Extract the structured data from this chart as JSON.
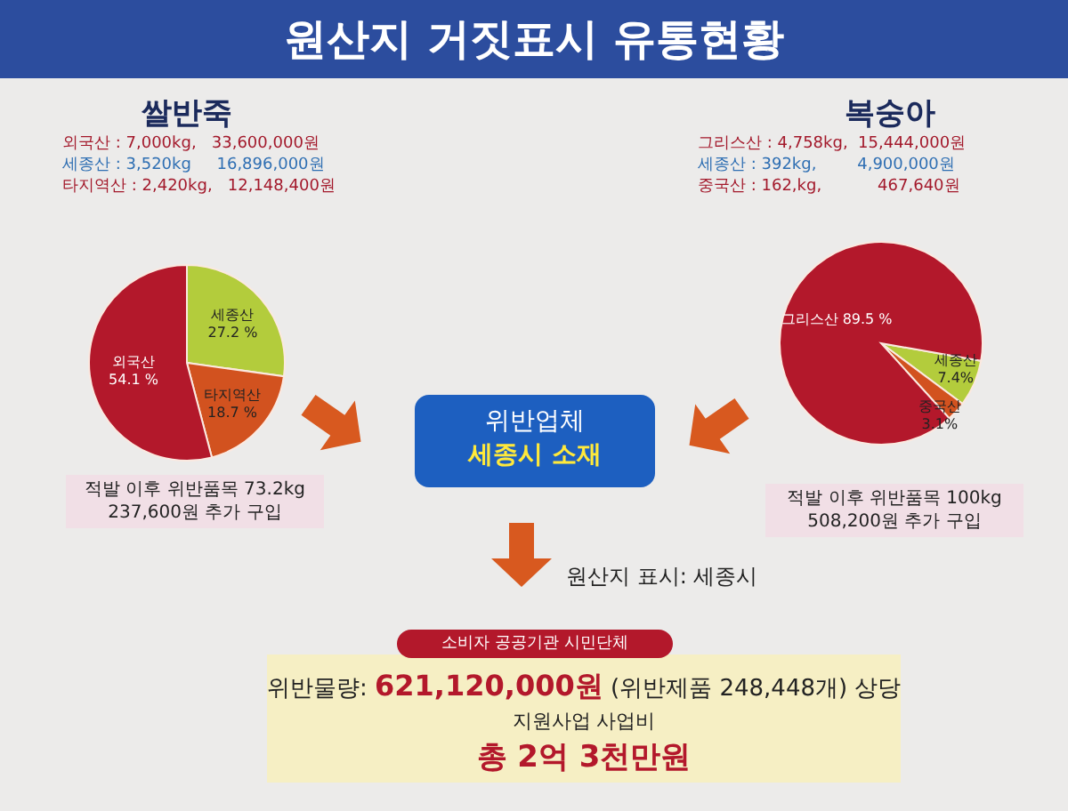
{
  "chart_data": [
    {
      "type": "other",
      "title": "원산지 거짓표시 유통현황"
    },
    {
      "type": "pie",
      "title": "쌀반죽",
      "categories": [
        "세종산",
        "타지역산",
        "외국산"
      ],
      "values": [
        27.2,
        18.7,
        54.1
      ],
      "colors": [
        "#b3cc3c",
        "#d2521f",
        "#b3182b"
      ],
      "value_labels": [
        "27.2 %",
        "18.7 %",
        "54.1 %"
      ],
      "annotations": [
        "외국산 : 7,000kg,   33,600,000원",
        "세종산 : 3,520kg     16,896,000원",
        "타지역산 : 2,420kg,   12,148,400원",
        "적발 이후 위반품목 73.2kg",
        "237,600원 추가 구입"
      ]
    },
    {
      "type": "pie",
      "title": "복숭아",
      "categories": [
        "세종산",
        "중국산",
        "그리스산"
      ],
      "values": [
        7.4,
        3.1,
        89.5
      ],
      "colors": [
        "#b3cc3c",
        "#d2521f",
        "#b3182b"
      ],
      "value_labels": [
        "7.4%",
        "3.1%",
        "89.5 %"
      ],
      "annotations": [
        "그리스산 : 4,758kg,  15,444,000원",
        "세종산 : 392kg,        4,900,000원",
        "중국산 : 162,kg,           467,640원",
        "적발 이후 위반품목 100kg",
        "508,200원 추가 구입"
      ]
    },
    {
      "type": "other",
      "annotations": [
        "위반업체",
        "세종시 소재",
        "원산지 표시: 세종시",
        "소비자 공공기관 시민단체",
        "위반물량:",
        "621,120,000원",
        "(위반제품 248,448개) 상당",
        "지원사업 사업비",
        "총 2억 3천만원"
      ]
    }
  ]
}
